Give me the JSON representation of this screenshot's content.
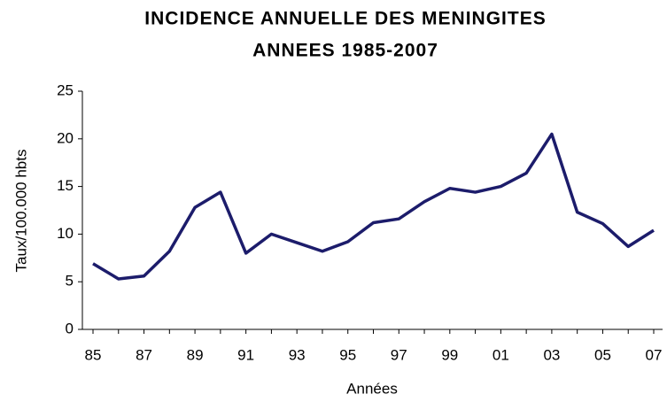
{
  "chart_data": {
    "type": "line",
    "title": "INCIDENCE ANNUELLE DES MENINGITES",
    "subtitle": "ANNEES 1985-2007",
    "y_label": "Taux/100.000 hbts",
    "x_label": "Années",
    "categories": [
      "85",
      null,
      "87",
      null,
      "89",
      null,
      "91",
      null,
      "93",
      null,
      "95",
      null,
      "97",
      null,
      "99",
      null,
      "01",
      null,
      "03",
      null,
      "05",
      null,
      "07"
    ],
    "series": [
      {
        "name": null,
        "color": "#1c1c6b",
        "values": [
          6.9,
          5.3,
          5.6,
          8.2,
          12.8,
          14.4,
          8.0,
          10.0,
          9.1,
          8.2,
          9.2,
          11.2,
          11.6,
          13.4,
          14.8,
          14.4,
          15.0,
          16.4,
          20.5,
          12.3,
          11.1,
          8.7,
          10.4
        ]
      }
    ],
    "ylim": [
      0,
      25
    ],
    "yticks": [
      0,
      5,
      10,
      15,
      20,
      25
    ],
    "grid": false
  }
}
